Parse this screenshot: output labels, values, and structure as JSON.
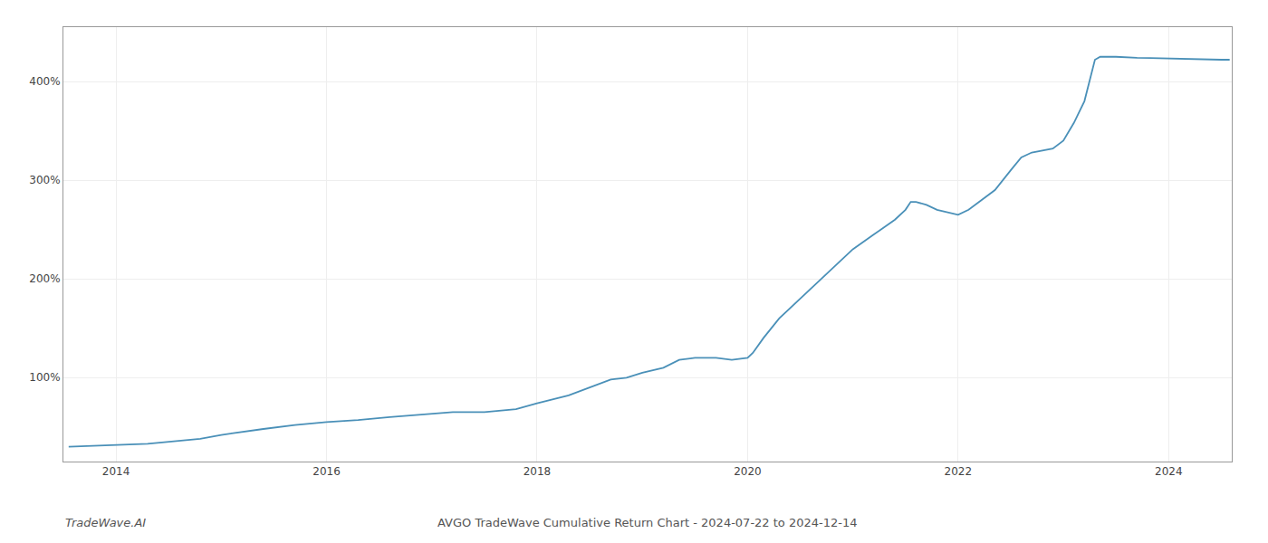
{
  "chart_data": {
    "type": "line",
    "title": "AVGO TradeWave Cumulative Return Chart - 2024-07-22 to 2024-12-14",
    "annotations": [
      "TradeWave.AI"
    ],
    "color": "#4a90b8",
    "grid": true,
    "xlim": [
      2013.5,
      2024.6
    ],
    "xticks": [
      2014,
      2016,
      2018,
      2020,
      2022,
      2024
    ],
    "ylim": [
      15,
      455
    ],
    "yticks": [
      {
        "value": 100,
        "label": "100%"
      },
      {
        "value": 200,
        "label": "200%"
      },
      {
        "value": 300,
        "label": "300%"
      },
      {
        "value": 400,
        "label": "400%"
      }
    ],
    "x": [
      2013.55,
      2014.0,
      2014.3,
      2014.8,
      2015.0,
      2015.4,
      2015.7,
      2016.0,
      2016.3,
      2016.6,
      2017.0,
      2017.2,
      2017.5,
      2017.8,
      2018.0,
      2018.3,
      2018.5,
      2018.7,
      2018.85,
      2019.0,
      2019.2,
      2019.35,
      2019.5,
      2019.7,
      2019.85,
      2020.0,
      2020.05,
      2020.15,
      2020.3,
      2020.5,
      2020.7,
      2020.85,
      2021.0,
      2021.2,
      2021.4,
      2021.5,
      2021.55,
      2021.6,
      2021.7,
      2021.8,
      2022.0,
      2022.1,
      2022.2,
      2022.35,
      2022.5,
      2022.6,
      2022.7,
      2022.8,
      2022.9,
      2023.0,
      2023.1,
      2023.2,
      2023.25,
      2023.3,
      2023.35,
      2023.5,
      2023.7,
      2024.0,
      2024.3,
      2024.5,
      2024.58
    ],
    "values": [
      30,
      32,
      33,
      38,
      42,
      48,
      52,
      55,
      57,
      60,
      63,
      65,
      65,
      68,
      74,
      82,
      90,
      98,
      100,
      105,
      110,
      118,
      120,
      120,
      118,
      120,
      125,
      140,
      160,
      180,
      200,
      215,
      230,
      245,
      260,
      270,
      278,
      278,
      275,
      270,
      265,
      270,
      278,
      290,
      310,
      323,
      328,
      330,
      332,
      340,
      358,
      380,
      400,
      422,
      425,
      425,
      424,
      423,
      422,
      422,
      422
    ]
  }
}
